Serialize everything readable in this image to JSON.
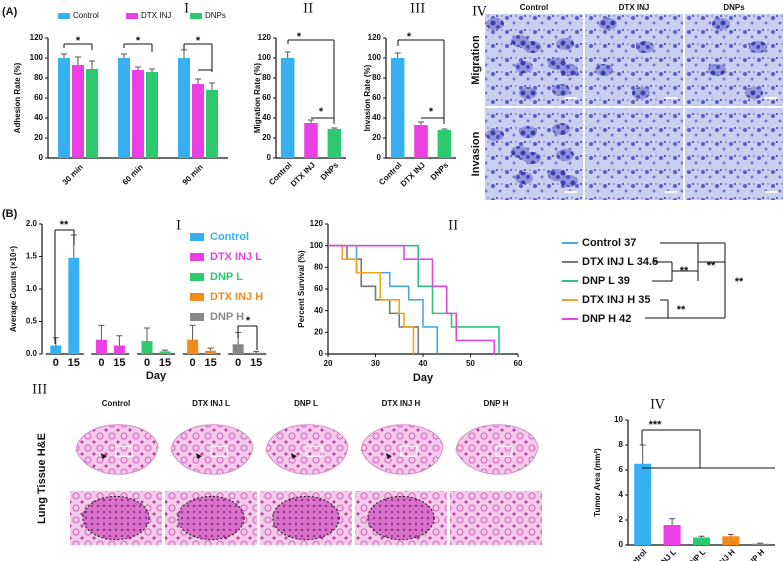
{
  "chart_data": [
    {
      "type": "grouped_bar",
      "panel_letter": "(A)",
      "panel_label": "I",
      "ylabel": "Adhesion Rate (%)",
      "categories": [
        "30 min",
        "60 min",
        "90 min"
      ],
      "series": [
        {
          "name": "Control",
          "color": "#36b0f0",
          "values": [
            100,
            100,
            100
          ],
          "errors": [
            4,
            4,
            8
          ]
        },
        {
          "name": "DTX INJ",
          "color": "#ea3fe3",
          "values": [
            93,
            88,
            74
          ],
          "errors": [
            8,
            3,
            5
          ]
        },
        {
          "name": "DNPs",
          "color": "#2cc96e",
          "values": [
            89,
            86,
            68
          ],
          "errors": [
            8,
            3,
            7
          ]
        }
      ],
      "ylim": [
        0,
        120
      ],
      "yticks": [
        0,
        20,
        40,
        60,
        80,
        100,
        120
      ],
      "annotations": [
        "*",
        "*",
        "*"
      ]
    },
    {
      "type": "bar",
      "panel_label": "II",
      "ylabel": "Migration Rate (%)",
      "categories": [
        "Control",
        "DTX INJ",
        "DNPs"
      ],
      "values": [
        100,
        35,
        29
      ],
      "errors": [
        6,
        3,
        1
      ],
      "colors": [
        "#36b0f0",
        "#ea3fe3",
        "#2cc96e"
      ],
      "ylim": [
        0,
        120
      ],
      "yticks": [
        0,
        20,
        40,
        60,
        80,
        100,
        120
      ],
      "annotations": [
        "*",
        "*"
      ]
    },
    {
      "type": "bar",
      "panel_label": "III",
      "ylabel": "Invasion Rate (%)",
      "categories": [
        "Control",
        "DTX INJ",
        "DNPs"
      ],
      "values": [
        100,
        33,
        28
      ],
      "errors": [
        5,
        3,
        1
      ],
      "colors": [
        "#36b0f0",
        "#ea3fe3",
        "#2cc96e"
      ],
      "ylim": [
        0,
        120
      ],
      "yticks": [
        0,
        20,
        40,
        60,
        80,
        100,
        120
      ],
      "annotations": [
        "*",
        "*"
      ]
    },
    {
      "type": "image_grid",
      "panel_label": "IV",
      "column_labels": [
        "Control",
        "DTX INJ",
        "DNPs"
      ],
      "row_labels": [
        "Migration",
        "Invasion"
      ]
    },
    {
      "type": "paired_bar",
      "panel_letter": "(B)",
      "panel_label": "I",
      "ylabel": "Average Counts (×10⁴)",
      "xlabel": "Day",
      "categories": [
        "0",
        "15"
      ],
      "series": [
        {
          "name": "Control",
          "color": "#36b0f0",
          "values": [
            0.13,
            1.48
          ],
          "errors": [
            0.12,
            0.35
          ]
        },
        {
          "name": "DTX INJ L",
          "color": "#ea3fe3",
          "values": [
            0.22,
            0.13
          ],
          "errors": [
            0.22,
            0.15
          ]
        },
        {
          "name": "DNP L",
          "color": "#2cc96e",
          "values": [
            0.2,
            0.04
          ],
          "errors": [
            0.2,
            0.02
          ]
        },
        {
          "name": "DTX INJ H",
          "color": "#f28a1c",
          "values": [
            0.22,
            0.05
          ],
          "errors": [
            0.22,
            0.04
          ]
        },
        {
          "name": "DNP H",
          "color": "#888888",
          "values": [
            0.15,
            0.02
          ],
          "errors": [
            0.18,
            0.02
          ]
        }
      ],
      "ylim": [
        0,
        2
      ],
      "yticks": [
        {
          "value": 0,
          "label": "0.0"
        },
        0.5,
        {
          "value": 1,
          "label": "1.0"
        },
        1.5,
        {
          "value": 2,
          "label": "2.0"
        }
      ],
      "annotations": [
        "**",
        "*"
      ]
    },
    {
      "type": "step",
      "panel_label": "II",
      "ylabel": "Percent Survival (%)",
      "xlabel": "Day",
      "series": [
        {
          "name": "Control 37",
          "color": "#4aa8e8",
          "x": [
            20,
            26,
            33,
            37,
            40,
            43
          ],
          "values": [
            100,
            75,
            62.5,
            50,
            25,
            0
          ]
        },
        {
          "name": "DTX INJ L 34.5",
          "color": "#777777",
          "x": [
            20,
            24,
            27,
            30,
            33,
            35,
            39
          ],
          "values": [
            100,
            87.5,
            62.5,
            50,
            37.5,
            25,
            0
          ]
        },
        {
          "name": "DNP L 39",
          "color": "#2ec27e",
          "x": [
            20,
            39,
            42,
            46,
            56
          ],
          "values": [
            100,
            62.5,
            37.5,
            25,
            0
          ]
        },
        {
          "name": "DTX INJ H 35",
          "color": "#f2a51c",
          "x": [
            20,
            23,
            26,
            31,
            35,
            36,
            38
          ],
          "values": [
            100,
            87.5,
            75,
            50,
            37.5,
            25,
            0
          ]
        },
        {
          "name": "DNP H 42",
          "color": "#e845e0",
          "x": [
            20,
            36,
            42,
            45,
            47,
            55
          ],
          "values": [
            100,
            87.5,
            62.5,
            37.5,
            12.5,
            0
          ]
        }
      ],
      "xlim": [
        20,
        60
      ],
      "xticks": [
        20,
        30,
        40,
        50,
        60
      ],
      "ylim": [
        0,
        120
      ],
      "yticks": [
        0,
        20,
        40,
        60,
        80,
        100,
        120
      ],
      "annotations": [
        "**",
        "**",
        "**",
        "**"
      ]
    },
    {
      "type": "image_grid",
      "panel_label": "III",
      "column_labels": [
        "Control",
        "DTX INJ L",
        "DNP L",
        "DTX INJ H",
        "DNP H"
      ],
      "row_labels": [
        "Lung Tissue H&E"
      ]
    },
    {
      "type": "bar",
      "panel_label": "IV",
      "ylabel": "Tumor Area (mm²)",
      "categories": [
        "Control",
        "DTX INJ L",
        "DNP L",
        "DTX INJ H",
        "DNP H"
      ],
      "values": [
        6.5,
        1.6,
        0.6,
        0.7,
        0.1
      ],
      "errors": [
        1.5,
        0.5,
        0.1,
        0.15,
        0.05
      ],
      "colors": [
        "#36b0f0",
        "#ea3fe3",
        "#2cc96e",
        "#f28a1c",
        "#888888"
      ],
      "ylim": [
        0,
        10
      ],
      "yticks": [
        0,
        2,
        4,
        6,
        8,
        10
      ],
      "annotations": [
        "***"
      ]
    }
  ]
}
